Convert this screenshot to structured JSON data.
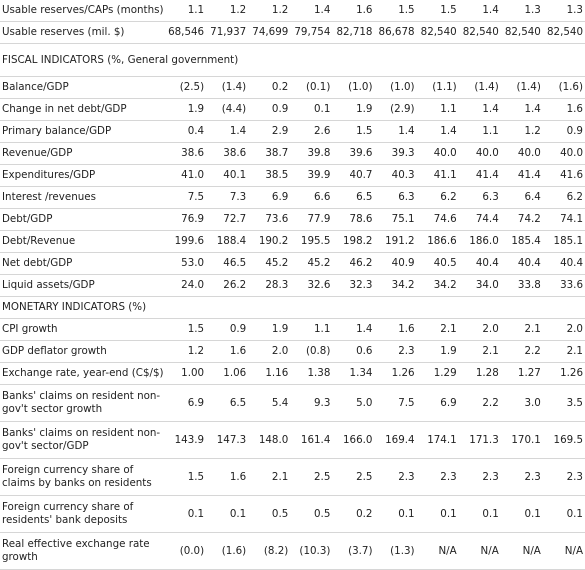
{
  "rows": [
    {
      "type": "row",
      "h": 22,
      "label": "Usable reserves/CAPs (months)",
      "values": [
        "1.1",
        "1.2",
        "1.2",
        "1.4",
        "1.6",
        "1.5",
        "1.5",
        "1.4",
        "1.3",
        "1.3"
      ]
    },
    {
      "type": "row",
      "h": 22,
      "label": "Usable reserves (mil. $)",
      "values": [
        "68,546",
        "71,937",
        "74,699",
        "79,754",
        "82,718",
        "86,678",
        "82,540",
        "82,540",
        "82,540",
        "82,540"
      ]
    },
    {
      "type": "section",
      "h": 33,
      "label": "FISCAL INDICATORS (%, General government)"
    },
    {
      "type": "row",
      "h": 22,
      "label": "Balance/GDP",
      "values": [
        "(2.5)",
        "(1.4)",
        "0.2",
        "(0.1)",
        "(1.0)",
        "(1.0)",
        "(1.1)",
        "(1.4)",
        "(1.4)",
        "(1.6)"
      ]
    },
    {
      "type": "row",
      "h": 22,
      "label": "Change in net debt/GDP",
      "values": [
        "1.9",
        "(4.4)",
        "0.9",
        "0.1",
        "1.9",
        "(2.9)",
        "1.1",
        "1.4",
        "1.4",
        "1.6"
      ]
    },
    {
      "type": "row",
      "h": 22,
      "label": "Primary balance/GDP",
      "values": [
        "0.4",
        "1.4",
        "2.9",
        "2.6",
        "1.5",
        "1.4",
        "1.4",
        "1.1",
        "1.2",
        "0.9"
      ]
    },
    {
      "type": "row",
      "h": 22,
      "label": "Revenue/GDP",
      "values": [
        "38.6",
        "38.6",
        "38.7",
        "39.8",
        "39.6",
        "39.3",
        "40.0",
        "40.0",
        "40.0",
        "40.0"
      ]
    },
    {
      "type": "row",
      "h": 22,
      "label": "Expenditures/GDP",
      "values": [
        "41.0",
        "40.1",
        "38.5",
        "39.9",
        "40.7",
        "40.3",
        "41.1",
        "41.4",
        "41.4",
        "41.6"
      ]
    },
    {
      "type": "row",
      "h": 22,
      "label": "Interest /revenues",
      "values": [
        "7.5",
        "7.3",
        "6.9",
        "6.6",
        "6.5",
        "6.3",
        "6.2",
        "6.3",
        "6.4",
        "6.2"
      ]
    },
    {
      "type": "row",
      "h": 22,
      "label": "Debt/GDP",
      "values": [
        "76.9",
        "72.7",
        "73.6",
        "77.9",
        "78.6",
        "75.1",
        "74.6",
        "74.4",
        "74.2",
        "74.1"
      ]
    },
    {
      "type": "row",
      "h": 22,
      "label": "Debt/Revenue",
      "values": [
        "199.6",
        "188.4",
        "190.2",
        "195.5",
        "198.2",
        "191.2",
        "186.6",
        "186.0",
        "185.4",
        "185.1"
      ]
    },
    {
      "type": "row",
      "h": 22,
      "label": "Net debt/GDP",
      "values": [
        "53.0",
        "46.5",
        "45.2",
        "45.2",
        "46.2",
        "40.9",
        "40.5",
        "40.4",
        "40.4",
        "40.4"
      ]
    },
    {
      "type": "row",
      "h": 22,
      "label": "Liquid assets/GDP",
      "values": [
        "24.0",
        "26.2",
        "28.3",
        "32.6",
        "32.3",
        "34.2",
        "34.2",
        "34.0",
        "33.8",
        "33.6"
      ]
    },
    {
      "type": "section",
      "h": 22,
      "label": "MONETARY INDICATORS (%)"
    },
    {
      "type": "row",
      "h": 22,
      "label": "CPI growth",
      "values": [
        "1.5",
        "0.9",
        "1.9",
        "1.1",
        "1.4",
        "1.6",
        "2.1",
        "2.0",
        "2.1",
        "2.0"
      ]
    },
    {
      "type": "row",
      "h": 22,
      "label": "GDP deflator growth",
      "values": [
        "1.2",
        "1.6",
        "2.0",
        "(0.8)",
        "0.6",
        "2.3",
        "1.9",
        "2.1",
        "2.2",
        "2.1"
      ]
    },
    {
      "type": "row",
      "h": 22,
      "label": "Exchange rate, year-end (C$/$)",
      "values": [
        "1.00",
        "1.06",
        "1.16",
        "1.38",
        "1.34",
        "1.26",
        "1.29",
        "1.28",
        "1.27",
        "1.26"
      ]
    },
    {
      "type": "row",
      "h": 37,
      "label": "Banks' claims on resident non-gov't sector growth",
      "values": [
        "6.9",
        "6.5",
        "5.4",
        "9.3",
        "5.0",
        "7.5",
        "6.9",
        "2.2",
        "3.0",
        "3.5"
      ]
    },
    {
      "type": "row",
      "h": 37,
      "label": "Banks' claims on resident non-gov't sector/GDP",
      "values": [
        "143.9",
        "147.3",
        "148.0",
        "161.4",
        "166.0",
        "169.4",
        "174.1",
        "171.3",
        "170.1",
        "169.5"
      ]
    },
    {
      "type": "row",
      "h": 37,
      "label": "Foreign currency share of claims by banks on residents",
      "values": [
        "1.5",
        "1.6",
        "2.1",
        "2.5",
        "2.5",
        "2.3",
        "2.3",
        "2.3",
        "2.3",
        "2.3"
      ]
    },
    {
      "type": "row",
      "h": 37,
      "label": "Foreign currency share of residents' bank deposits",
      "values": [
        "0.1",
        "0.1",
        "0.5",
        "0.5",
        "0.2",
        "0.1",
        "0.1",
        "0.1",
        "0.1",
        "0.1"
      ]
    },
    {
      "type": "row",
      "h": 37,
      "label": "Real effective exchange rate growth",
      "values": [
        "(0.0)",
        "(1.6)",
        "(8.2)",
        "(10.3)",
        "(3.7)",
        "(1.3)",
        "N/A",
        "N/A",
        "N/A",
        "N/A"
      ]
    }
  ]
}
